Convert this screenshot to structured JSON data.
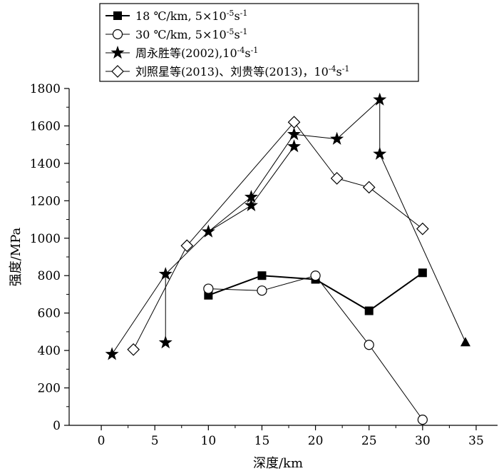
{
  "chart_data": {
    "type": "line",
    "title": "",
    "xlabel": "深度/km",
    "ylabel": "强度/MPa",
    "xlim": [
      -3,
      37
    ],
    "ylim": [
      0,
      1800
    ],
    "xticks": [
      0,
      5,
      10,
      15,
      20,
      25,
      30,
      35
    ],
    "yticks": [
      0,
      200,
      400,
      600,
      800,
      1000,
      1200,
      1400,
      1600,
      1800
    ],
    "grid": false,
    "legend_position": "top",
    "series": [
      {
        "name": "18 ℃/km, 5×10-5s-1",
        "legend_parts": [
          "18 ℃/km, 5×10",
          "-5",
          "s",
          "-1"
        ],
        "marker": "square-filled",
        "line_width": 2,
        "x": [
          10,
          15,
          20,
          25,
          30
        ],
        "y": [
          695,
          800,
          780,
          612,
          815
        ]
      },
      {
        "name": "30 ℃/km, 5×10-5s-1",
        "legend_parts": [
          "30 ℃/km, 5×10",
          "-5",
          "s",
          "-1"
        ],
        "marker": "circle-open",
        "line_width": 1,
        "x": [
          10,
          15,
          20,
          25,
          30
        ],
        "y": [
          730,
          720,
          800,
          430,
          30
        ]
      },
      {
        "name": "周永胜等(2002),10-4s-1",
        "legend_parts": [
          "周永胜等(2002),10",
          "-4",
          "s",
          "-1"
        ],
        "marker": "star-filled",
        "line_width": 1,
        "x": [
          1,
          6,
          6,
          10,
          14,
          14,
          18,
          18,
          22,
          26,
          26,
          34
        ],
        "y": [
          380,
          808,
          442,
          1035,
          1175,
          1220,
          1490,
          1555,
          1530,
          1740,
          1450,
          445
        ],
        "segments": [
          [
            0,
            1
          ],
          [
            1,
            2
          ],
          [
            1,
            3
          ],
          [
            3,
            4
          ],
          [
            3,
            5
          ],
          [
            4,
            6
          ],
          [
            5,
            7
          ],
          [
            7,
            8
          ],
          [
            8,
            9
          ],
          [
            9,
            10
          ],
          [
            10,
            11
          ]
        ],
        "end_marker": "triangle-filled"
      },
      {
        "name": "刘照星等(2013)、刘贵等(2013)，10-4s-1",
        "legend_parts": [
          "刘照星等(2013)、刘贵等(2013)，10",
          "-4",
          "s",
          "-1"
        ],
        "marker": "diamond-open",
        "line_width": 1,
        "x": [
          3,
          8,
          18,
          22,
          25,
          30
        ],
        "y": [
          405,
          960,
          1620,
          1320,
          1272,
          1050
        ]
      }
    ]
  }
}
